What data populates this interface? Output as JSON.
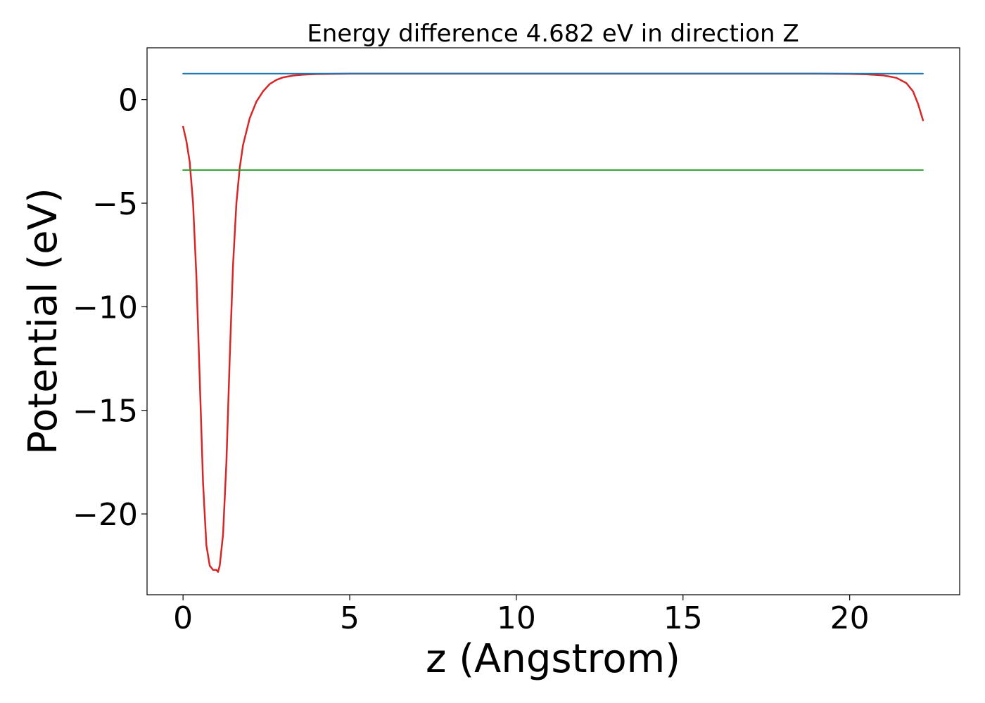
{
  "chart_data": {
    "type": "line",
    "title": "Energy difference 4.682 eV in direction Z",
    "xlabel": "z (Angstrom)",
    "ylabel": "Potential (eV)",
    "xlim": [
      -1.08,
      23.3
    ],
    "ylim": [
      -23.9,
      2.5
    ],
    "xticks": [
      0,
      5,
      10,
      15,
      20
    ],
    "xtick_labels": [
      "0",
      "5",
      "10",
      "15",
      "20"
    ],
    "yticks": [
      0,
      -5,
      -10,
      -15,
      -20
    ],
    "ytick_labels": [
      "0",
      "−5",
      "−10",
      "−15",
      "−20"
    ],
    "grid": false,
    "legend": "none",
    "series": [
      {
        "color": "#d62728",
        "x": [
          0,
          0.1,
          0.2,
          0.3,
          0.4,
          0.5,
          0.6,
          0.7,
          0.8,
          0.9,
          1.0,
          1.05,
          1.1,
          1.2,
          1.3,
          1.4,
          1.5,
          1.6,
          1.7,
          1.8,
          2.0,
          2.2,
          2.4,
          2.6,
          2.8,
          3.0,
          3.3,
          3.6,
          4.0,
          5.0,
          7.0,
          10.0,
          15.0,
          19.0,
          20.0,
          20.5,
          21.0,
          21.4,
          21.7,
          21.9,
          22.05,
          22.2
        ],
        "y": [
          -1.3,
          -2.0,
          -3.0,
          -5.0,
          -8.5,
          -13.5,
          -18.5,
          -21.5,
          -22.5,
          -22.7,
          -22.7,
          -22.8,
          -22.5,
          -21.0,
          -17.5,
          -12.5,
          -8.0,
          -5.0,
          -3.3,
          -2.2,
          -0.9,
          -0.1,
          0.4,
          0.75,
          0.95,
          1.07,
          1.16,
          1.2,
          1.23,
          1.25,
          1.25,
          1.25,
          1.25,
          1.25,
          1.24,
          1.22,
          1.17,
          1.05,
          0.8,
          0.4,
          -0.2,
          -1.0
        ]
      },
      {
        "color": "#1f77b4",
        "x": [
          0,
          22.2
        ],
        "y": [
          1.25,
          1.25
        ]
      },
      {
        "color": "#2ca02c",
        "x": [
          0,
          22.2
        ],
        "y": [
          -3.4,
          -3.4
        ]
      }
    ]
  }
}
